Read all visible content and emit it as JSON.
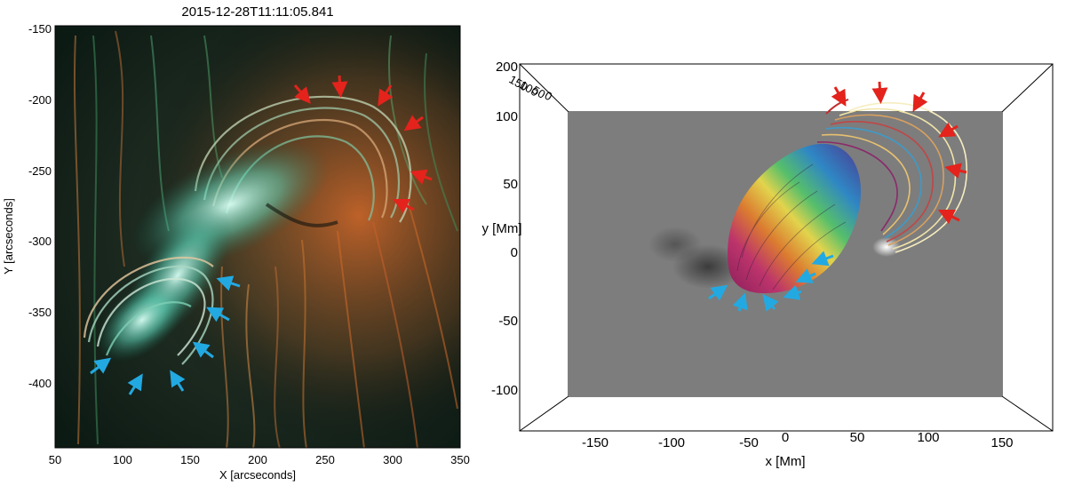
{
  "left_panel": {
    "title": "2015-12-28T11:11:05.841",
    "x_label": "X [arcseconds]",
    "y_label": "Y [arcseconds]",
    "x_ticks": [
      "50",
      "100",
      "150",
      "200",
      "250",
      "300",
      "350"
    ],
    "y_ticks": [
      "-150",
      "-200",
      "-250",
      "-300",
      "-350",
      "-400"
    ]
  },
  "right_panel": {
    "x_label": "x [Mm]",
    "y_label": "y [Mm]",
    "x_ticks": [
      "-150",
      "-100",
      "-50",
      "0",
      "50",
      "100",
      "150"
    ],
    "y_ticks": [
      "200",
      "100",
      "50",
      "0",
      "-50",
      "-100"
    ],
    "z_ticks": [
      "150",
      "100",
      "50",
      "0"
    ]
  },
  "colors": {
    "red_arrow": "#e3231c",
    "blue_arrow": "#23a9e1",
    "magnetogram_gray": "#7d7d7d"
  }
}
